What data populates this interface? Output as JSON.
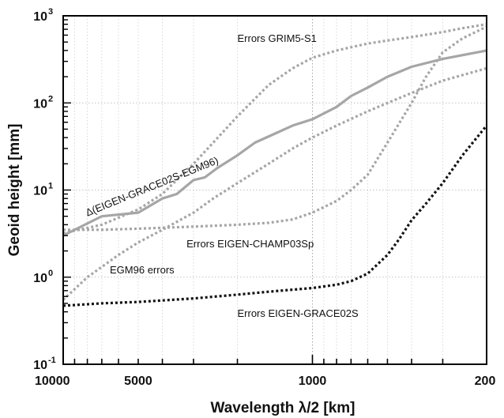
{
  "chart_data": {
    "type": "line",
    "xlabel": "Wavelength λ/2 [km]",
    "ylabel": "Geoid height [mm]",
    "x_scale": "log-reversed",
    "y_scale": "log",
    "xlim": [
      10000,
      200
    ],
    "ylim": [
      0.1,
      1000
    ],
    "grid": true,
    "x_ticks": [
      {
        "value": 10000,
        "label": "10000"
      },
      {
        "value": 5000,
        "label": "5000"
      },
      {
        "value": 1000,
        "label": "1000"
      },
      {
        "value": 200,
        "label": "200"
      }
    ],
    "y_ticks": [
      {
        "value": 0.1,
        "base": "10",
        "exp": "-1"
      },
      {
        "value": 1,
        "base": "10",
        "exp": "0"
      },
      {
        "value": 10,
        "base": "10",
        "exp": "1"
      },
      {
        "value": 100,
        "base": "10",
        "exp": "2"
      },
      {
        "value": 1000,
        "base": "10",
        "exp": "3"
      }
    ],
    "series": [
      {
        "name": "Δ(EIGEN-GRACE02S-EGM96)",
        "style": "solid",
        "color": "#a6a6a6",
        "x": [
          10000,
          7000,
          5000,
          4000,
          3500,
          3000,
          2700,
          2400,
          2000,
          1700,
          1400,
          1200,
          1000,
          800,
          700,
          600,
          500,
          400,
          300,
          200
        ],
        "y": [
          3,
          5,
          5.5,
          8,
          9,
          13,
          14,
          18,
          25,
          35,
          45,
          55,
          65,
          90,
          120,
          150,
          200,
          260,
          320,
          400
        ]
      },
      {
        "name": "Errors GRIM5-S1",
        "style": "dotted",
        "color": "#a6a6a6",
        "x": [
          10000,
          7000,
          5000,
          4000,
          3000,
          2500,
          2000,
          1500,
          1200,
          1000,
          800,
          600,
          500,
          400,
          300,
          250,
          200
        ],
        "y": [
          3.2,
          4,
          6,
          9,
          20,
          35,
          70,
          160,
          250,
          330,
          400,
          480,
          520,
          570,
          650,
          720,
          800
        ]
      },
      {
        "name": "Errors EIGEN-CHAMP03Sp",
        "style": "dotted",
        "color": "#a6a6a6",
        "x": [
          10000,
          7000,
          5000,
          3000,
          2000,
          1500,
          1200,
          1000,
          800,
          700,
          600,
          500,
          400,
          350,
          300,
          250,
          200
        ],
        "y": [
          3.5,
          3.5,
          3.6,
          3.8,
          4,
          4.2,
          4.6,
          5.5,
          7.5,
          10,
          15,
          35,
          100,
          200,
          380,
          550,
          750
        ]
      },
      {
        "name": "EGM96 errors",
        "style": "dotted",
        "color": "#a6a6a6",
        "x": [
          10000,
          8000,
          6000,
          5000,
          4000,
          3000,
          2500,
          2000,
          1500,
          1200,
          1000,
          800,
          600,
          500,
          400,
          300,
          200
        ],
        "y": [
          0.55,
          1,
          1.8,
          2.5,
          3.5,
          5.5,
          8,
          12,
          20,
          30,
          40,
          55,
          80,
          100,
          130,
          180,
          250
        ]
      },
      {
        "name": "Errors EIGEN-GRACE02S",
        "style": "dotted",
        "color": "#111111",
        "x": [
          10000,
          7000,
          5000,
          3000,
          2000,
          1500,
          1000,
          800,
          700,
          600,
          500,
          450,
          400,
          350,
          300,
          250,
          200
        ],
        "y": [
          0.47,
          0.5,
          0.52,
          0.57,
          0.63,
          0.68,
          0.75,
          0.82,
          0.9,
          1.1,
          1.8,
          2.7,
          4.5,
          7,
          12,
          25,
          55
        ]
      }
    ],
    "annotations": [
      {
        "text": "Errors GRIM5-S1",
        "at_x": 2000,
        "at_y": 500
      },
      {
        "text": "Δ(EIGEN-GRACE02S-EGM96)",
        "at_x": 8000,
        "at_y": 5,
        "rotate": -22
      },
      {
        "text": "Errors EIGEN-CHAMP03Sp",
        "at_x": 3200,
        "at_y": 2.2
      },
      {
        "text": "EGM96 errors",
        "at_x": 6500,
        "at_y": 1.1
      },
      {
        "text": "Errors EIGEN-GRACE02S",
        "at_x": 2000,
        "at_y": 0.35
      }
    ]
  }
}
